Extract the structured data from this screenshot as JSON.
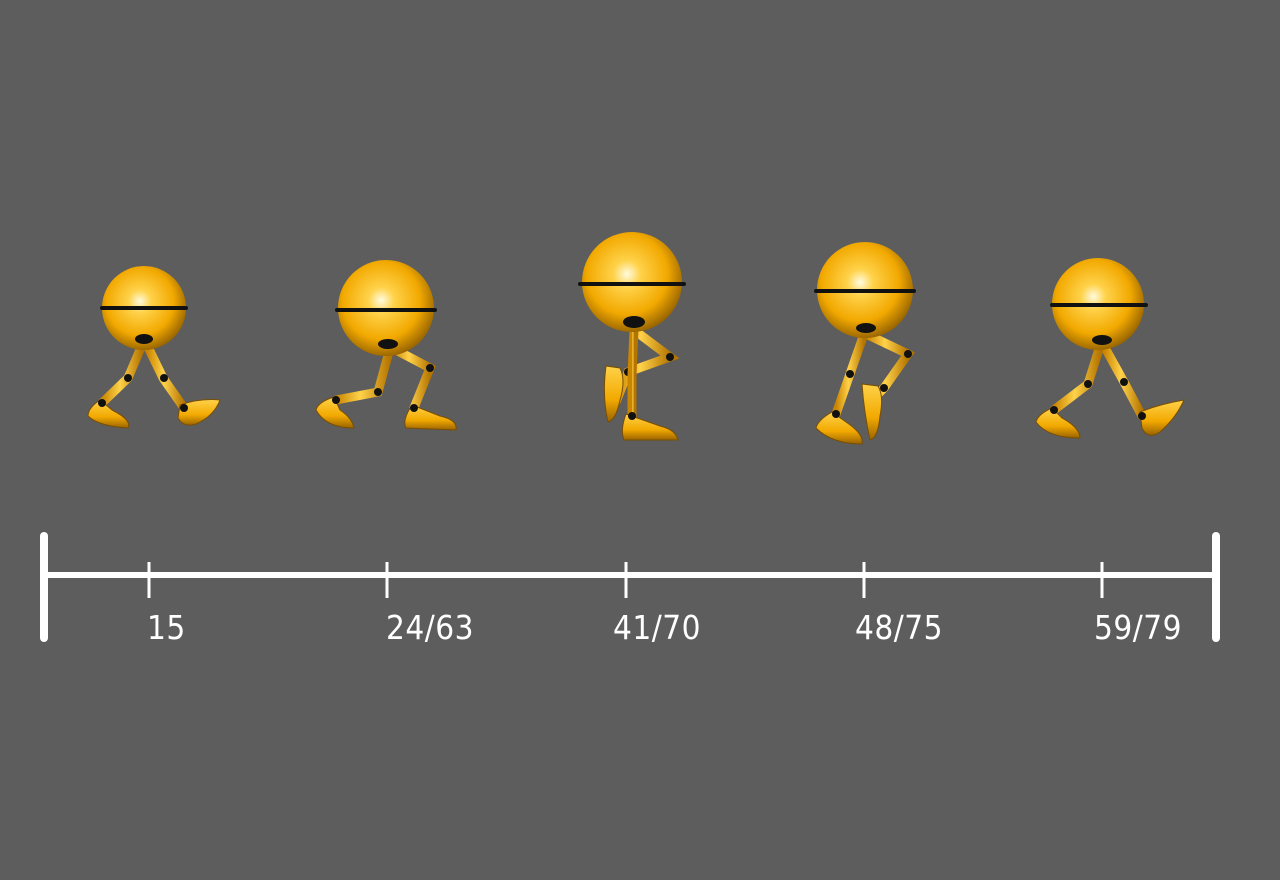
{
  "timeline": {
    "frames": [
      {
        "label": "15",
        "pose": "contact-left"
      },
      {
        "label": "24/63",
        "pose": "down"
      },
      {
        "label": "41/70",
        "pose": "passing"
      },
      {
        "label": "48/75",
        "pose": "up"
      },
      {
        "label": "59/79",
        "pose": "contact-right"
      }
    ]
  },
  "colors": {
    "background": "#5d5d5d",
    "body": "#f2a900",
    "body_highlight": "#fff6c8",
    "body_shadow": "#8a5a00",
    "joint": "#111111",
    "timeline": "#ffffff"
  }
}
